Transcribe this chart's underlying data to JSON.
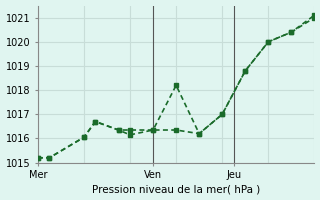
{
  "title": "",
  "xlabel": "Pression niveau de la mer( hPa )",
  "ylabel": "",
  "background_color": "#e0f5f0",
  "grid_color": "#c8ddd8",
  "line_color": "#1a6b2a",
  "ylim": [
    1015,
    1021.5
  ],
  "xlim": [
    0,
    12
  ],
  "yticks": [
    1015,
    1016,
    1017,
    1018,
    1019,
    1020,
    1021
  ],
  "xtick_positions": [
    0,
    5,
    8.5
  ],
  "xtick_labels": [
    "Mer",
    "Ven",
    "Jeu"
  ],
  "vlines": [
    5,
    8.5
  ],
  "series1_x": [
    0,
    0.5,
    2,
    2.5,
    3.5,
    4,
    5,
    6,
    7,
    8,
    9,
    10,
    11,
    12
  ],
  "series1_y": [
    1015.2,
    1015.2,
    1016.05,
    1016.7,
    1016.35,
    1016.35,
    1016.35,
    1018.2,
    1016.2,
    1017.0,
    1018.8,
    1020.0,
    1020.4,
    1021.0
  ],
  "series2_x": [
    0,
    0.5,
    2,
    2.5,
    3.5,
    4,
    5,
    6,
    7,
    8,
    9,
    10,
    11,
    12
  ],
  "series2_y": [
    1015.2,
    1015.2,
    1016.05,
    1016.7,
    1016.35,
    1016.15,
    1016.35,
    1016.35,
    1016.2,
    1017.0,
    1018.8,
    1020.0,
    1020.4,
    1021.1
  ],
  "marker_size": 3.5,
  "linewidth": 1.2
}
